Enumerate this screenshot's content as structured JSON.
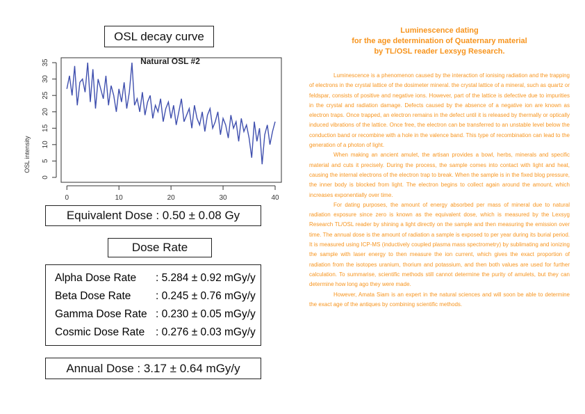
{
  "chart_data": {
    "type": "line",
    "title": "Natural OSL #2",
    "y_label": "OSL intensity",
    "color": "#3f4fae",
    "x": [
      0,
      0.5,
      1,
      1.5,
      2,
      2.5,
      3,
      3.5,
      4,
      4.5,
      5,
      5.5,
      6,
      6.5,
      7,
      7.5,
      8,
      8.5,
      9,
      9.5,
      10,
      10.5,
      11,
      11.5,
      12,
      12.5,
      13,
      13.5,
      14,
      14.5,
      15,
      15.5,
      16,
      16.5,
      17,
      17.5,
      18,
      18.5,
      19,
      19.5,
      20,
      20.5,
      21,
      21.5,
      22,
      22.5,
      23,
      23.5,
      24,
      24.5,
      25,
      25.5,
      26,
      26.5,
      27,
      27.5,
      28,
      28.5,
      29,
      29.5,
      30,
      30.5,
      31,
      31.5,
      32,
      32.5,
      33,
      33.5,
      34,
      34.5,
      35,
      35.5,
      36,
      36.5,
      37,
      37.5,
      38,
      38.5,
      39,
      39.5,
      40
    ],
    "values": [
      27,
      31,
      25,
      34,
      22,
      29,
      30,
      26,
      35,
      23,
      33,
      21,
      30,
      27,
      24,
      31,
      22,
      28,
      25,
      20,
      27,
      23,
      29,
      21,
      26,
      35,
      22,
      24,
      20,
      26,
      19,
      23,
      25,
      18,
      22,
      20,
      24,
      17,
      21,
      23,
      18,
      22,
      16,
      20,
      24,
      17,
      19,
      21,
      15,
      22,
      18,
      16,
      20,
      14,
      19,
      21,
      15,
      17,
      20,
      13,
      18,
      16,
      12,
      19,
      15,
      17,
      11,
      18,
      14,
      16,
      12,
      6,
      17,
      11,
      15,
      4,
      13,
      16,
      10,
      14,
      17
    ],
    "xlim": [
      -1.1,
      41.2
    ],
    "ylim": [
      -1.5,
      36.5
    ],
    "xticks": [
      0,
      10,
      20,
      30,
      40
    ],
    "yticks": [
      0,
      5,
      10,
      15,
      20,
      25,
      30,
      35
    ]
  },
  "osl_title": "OSL decay curve",
  "equivalent_dose": "Equivalent Dose : 0.50 ±  0.08 Gy",
  "dose_rate_title": "Dose Rate",
  "dose_rates": [
    [
      "Alpha Dose Rate",
      ": 5.284 ±  0.92 mGy/y"
    ],
    [
      "Beta Dose Rate",
      ": 0.245 ±  0.76 mGy/y"
    ],
    [
      "Gamma Dose Rate",
      ": 0.230 ±  0.05 mGy/y"
    ],
    [
      "Cosmic Dose Rate",
      ": 0.276 ± 0.03 mGy/y"
    ]
  ],
  "annual_dose": "Annual Dose : 3.17 ±  0.64 mGy/y",
  "article": {
    "title": [
      "Luminescence dating",
      "for the age determination of Quaternary material",
      "by TL/OSL reader Lexsyg Research."
    ],
    "paragraphs": [
      "Luminescence is a phenomenon caused by the interaction of ionising radiation and the trapping of electrons in the crystal lattice of the dosimeter mineral. the crystal lattice of a mineral, such as quartz or feldspar, consists of positive and negative ions. However, part of the lattice is defective due to impurities in the crystal and radiation damage. Defects caused by the absence of a negative ion are known as electron traps. Once trapped, an electron remains in the defect until it is released by thermally or optically induced vibrations of the lattice. Once free, the electron can be transferred to an unstable level below the conduction band or recombine with a hole in the valence band. This type of recombination can lead to the generation of a photon of light.",
      "When making an ancient amulet, the artisan provides a bowl, herbs, minerals and specific material and cuts it precisely. During the process, the sample comes into contact with light and heat, causing the internal electrons of the electron trap to break. When the sample is in the fixed blog pressure, the inner body is blocked from light. The electron begins to collect again around the amount, which increases exponentially over time.",
      "For dating purposes, the amount of energy absorbed per mass of mineral due to natural radiation exposure since zero is known as the equivalent dose, which is measured by the Lexsyg Research TL/OSL reader by shining a light directly on the sample and then measuring the emission over time. The annual dose is the amount of radiation a sample is exposed to per year during its burial period. It is measured using ICP-MS (inductively coupled plasma mass spectrometry) by sublimating and ionizing the sample with laser energy to then measure the ion current, which gives the exact proportion of radiation from the isotopes uranium, thorium and potassium, and then both values are used for further calculation. To summarise, scientific methods still cannot determine the purity of amulets, but they can determine how long ago they were made.",
      "However, Amata Siam is an expert in the natural sciences and will soon be able to determine the exact age of the antiques by combining scientific methods."
    ]
  }
}
